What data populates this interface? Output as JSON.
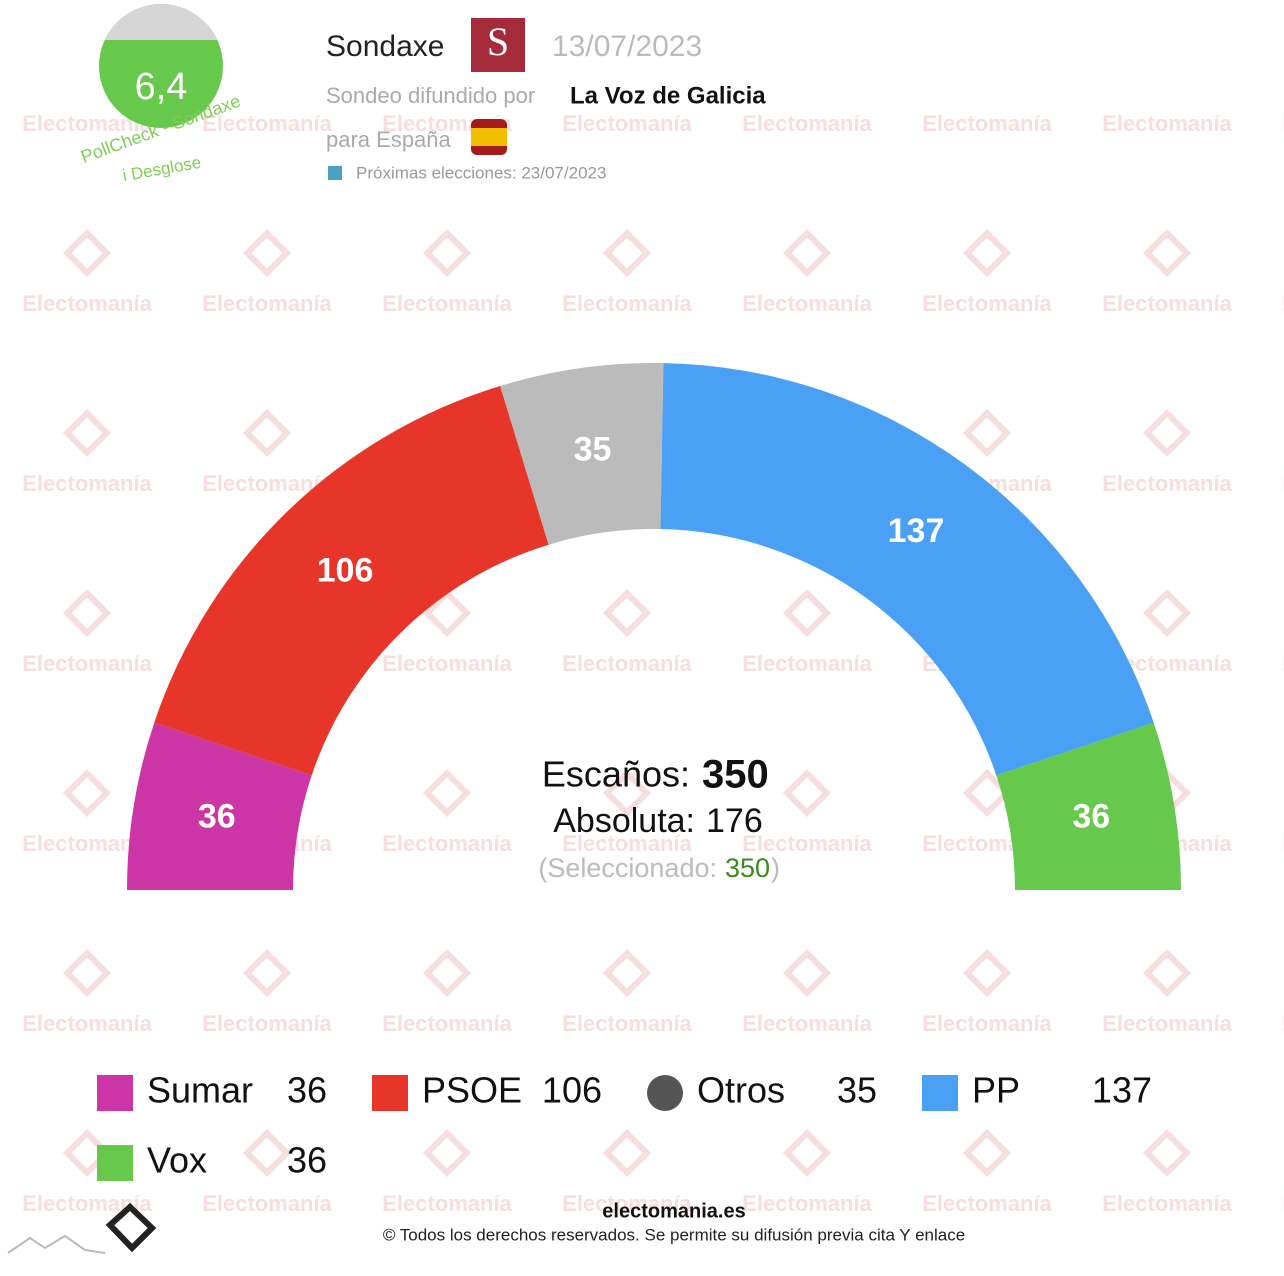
{
  "header": {
    "pollster": "Sondaxe",
    "date": "13/07/2023",
    "published_by_label": "Sondeo difundido por",
    "published_by": "La Voz de Galicia",
    "scope": "para España",
    "next_elections": "Próximas elecciones: 23/07/2023",
    "score": "6,4",
    "score_label": "PollCheck - Sondaxe",
    "breakdown": "i Desglose"
  },
  "watermark": "Electomanía",
  "chart_data": {
    "type": "parliament",
    "categories": [
      "Sumar",
      "PSOE",
      "Otros",
      "PP",
      "Vox"
    ],
    "values": [
      36,
      106,
      35,
      137,
      36
    ],
    "colors": [
      "#cc35a5",
      "#e8352a",
      "#bbbbbb",
      "#4aa0f5",
      "#67c94c"
    ],
    "seats_label": "Escaños:",
    "seats": 350,
    "majority_label": "Absoluta:",
    "majority": 176,
    "selected_label": "(Seleccionado:",
    "selected": 350,
    "selected_close": ")"
  },
  "footer": {
    "site": "electomania.es",
    "copyright": "© Todos los derechos reservados. Se permite su difusión previa cita Y enlace"
  }
}
